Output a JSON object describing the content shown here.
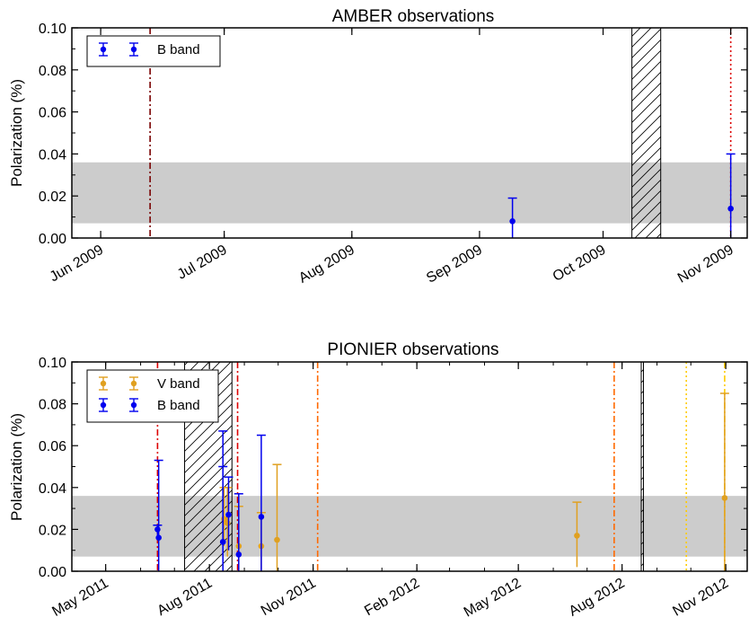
{
  "colors": {
    "b_band": "#0000ee",
    "v_band": "#e0a020",
    "band_fill": "#cccccc",
    "hatch": "#000000",
    "vline_darkred": "#7a0000",
    "vline_red": "#dd0000",
    "vline_orange": "#ff6a00",
    "vline_yellow": "#ffcc00"
  },
  "chart_data": [
    {
      "type": "scatter",
      "title": "AMBER observations",
      "xlabel": "",
      "ylabel": "Polarization (%)",
      "ylim": [
        0.0,
        0.1
      ],
      "y_ticks": [
        "0.00",
        "0.02",
        "0.04",
        "0.06",
        "0.08",
        "0.10"
      ],
      "x_axis": "date",
      "xlim": [
        "2009-05-25",
        "2009-11-05"
      ],
      "x_ticks": [
        {
          "date": "2009-06-01",
          "label": "Jun 2009"
        },
        {
          "date": "2009-07-01",
          "label": "Jul 2009"
        },
        {
          "date": "2009-08-01",
          "label": "Aug 2009"
        },
        {
          "date": "2009-09-01",
          "label": "Sep 2009"
        },
        {
          "date": "2009-10-01",
          "label": "Oct 2009"
        },
        {
          "date": "2009-11-01",
          "label": "Nov 2009"
        }
      ],
      "shaded_band": [
        0.007,
        0.036
      ],
      "hatched_regions": [
        [
          "2009-10-08",
          "2009-10-15"
        ]
      ],
      "vertical_lines": [
        {
          "date": "2009-06-13",
          "color": "vline_darkred",
          "style": "dashdot"
        },
        {
          "date": "2009-11-01",
          "color": "vline_red",
          "style": "dotted"
        }
      ],
      "legend": {
        "position": "top-left",
        "entries": [
          {
            "label": "B band",
            "color": "b_band"
          }
        ]
      },
      "series": [
        {
          "name": "B band",
          "color": "b_band",
          "points": [
            {
              "x": "2009-09-09",
              "y": 0.008,
              "lo": 0.0,
              "hi": 0.019
            },
            {
              "x": "2009-11-01",
              "y": 0.014,
              "lo": 0.0,
              "hi": 0.04
            }
          ]
        }
      ]
    },
    {
      "type": "scatter",
      "title": "PIONIER observations",
      "xlabel": "",
      "ylabel": "Polarization (%)",
      "ylim": [
        0.0,
        0.1
      ],
      "y_ticks": [
        "0.00",
        "0.02",
        "0.04",
        "0.06",
        "0.08",
        "0.10"
      ],
      "x_axis": "date",
      "xlim": [
        "2011-04-01",
        "2012-11-20"
      ],
      "x_ticks": [
        {
          "date": "2011-05-01",
          "label": "May 2011"
        },
        {
          "date": "2011-08-01",
          "label": "Aug 2011"
        },
        {
          "date": "2011-11-01",
          "label": "Nov 2011"
        },
        {
          "date": "2012-02-01",
          "label": "Feb 2012"
        },
        {
          "date": "2012-05-01",
          "label": "May 2012"
        },
        {
          "date": "2012-08-01",
          "label": "Aug 2012"
        },
        {
          "date": "2012-11-01",
          "label": "Nov 2012"
        }
      ],
      "shaded_band": [
        0.007,
        0.036
      ],
      "hatched_regions": [
        [
          "2011-07-10",
          "2011-08-21"
        ],
        [
          "2012-08-18",
          "2012-08-20"
        ]
      ],
      "vertical_lines": [
        {
          "date": "2011-06-16",
          "color": "vline_red",
          "style": "dashdot"
        },
        {
          "date": "2011-08-26",
          "color": "vline_red",
          "style": "dashdot"
        },
        {
          "date": "2011-11-05",
          "color": "vline_orange",
          "style": "dashdot"
        },
        {
          "date": "2012-07-25",
          "color": "vline_orange",
          "style": "dashdot"
        },
        {
          "date": "2012-09-27",
          "color": "vline_yellow",
          "style": "dotted"
        },
        {
          "date": "2012-10-31",
          "color": "vline_yellow",
          "style": "dashdot"
        }
      ],
      "legend": {
        "position": "top-left",
        "entries": [
          {
            "label": "V band",
            "color": "v_band"
          },
          {
            "label": "B band",
            "color": "b_band"
          }
        ]
      },
      "series": [
        {
          "name": "V band",
          "color": "v_band",
          "points": [
            {
              "x": "2011-08-14",
              "y": 0.025,
              "lo": 0.012,
              "hi": 0.04
            },
            {
              "x": "2011-08-17",
              "y": 0.023,
              "lo": 0.007,
              "hi": 0.04
            },
            {
              "x": "2011-08-27",
              "y": 0.012,
              "lo": 0.0,
              "hi": 0.031
            },
            {
              "x": "2011-09-16",
              "y": 0.012,
              "lo": 0.0,
              "hi": 0.028
            },
            {
              "x": "2011-09-30",
              "y": 0.015,
              "lo": 0.0,
              "hi": 0.051
            },
            {
              "x": "2012-06-22",
              "y": 0.017,
              "lo": 0.002,
              "hi": 0.033
            },
            {
              "x": "2012-10-31",
              "y": 0.035,
              "lo": 0.0,
              "hi": 0.085
            }
          ]
        },
        {
          "name": "B band",
          "color": "b_band",
          "points": [
            {
              "x": "2011-06-16",
              "y": 0.02,
              "lo": 0.017,
              "hi": 0.022
            },
            {
              "x": "2011-06-17",
              "y": 0.016,
              "lo": 0.0,
              "hi": 0.053
            },
            {
              "x": "2011-08-13",
              "y": 0.014,
              "lo": 0.0,
              "hi": 0.05
            },
            {
              "x": "2011-08-13",
              "y": 0.014,
              "lo": 0.0,
              "hi": 0.067
            },
            {
              "x": "2011-08-18",
              "y": 0.027,
              "lo": 0.01,
              "hi": 0.045
            },
            {
              "x": "2011-08-27",
              "y": 0.008,
              "lo": 0.0,
              "hi": 0.037
            },
            {
              "x": "2011-09-16",
              "y": 0.026,
              "lo": 0.0,
              "hi": 0.065
            }
          ]
        }
      ]
    }
  ]
}
